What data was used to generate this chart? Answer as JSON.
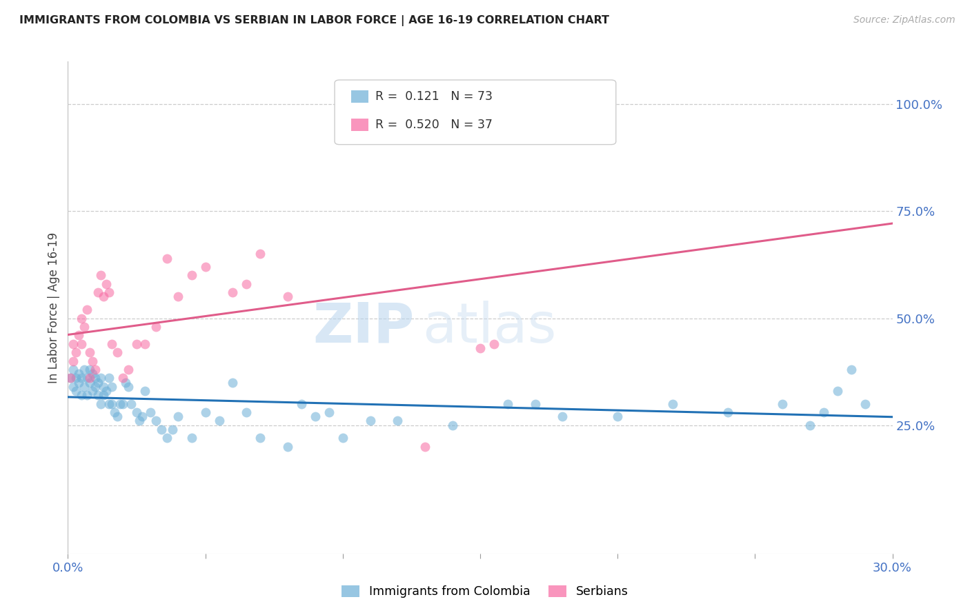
{
  "title": "IMMIGRANTS FROM COLOMBIA VS SERBIAN IN LABOR FORCE | AGE 16-19 CORRELATION CHART",
  "source": "Source: ZipAtlas.com",
  "ylabel": "In Labor Force | Age 16-19",
  "xlim": [
    0.0,
    0.3
  ],
  "ylim": [
    -0.05,
    1.1
  ],
  "xticks": [
    0.0,
    0.05,
    0.1,
    0.15,
    0.2,
    0.25,
    0.3
  ],
  "xticklabels": [
    "0.0%",
    "",
    "",
    "",
    "",
    "",
    "30.0%"
  ],
  "ytick_positions": [
    0.25,
    0.5,
    0.75,
    1.0
  ],
  "ytick_labels": [
    "25.0%",
    "50.0%",
    "75.0%",
    "100.0%"
  ],
  "colombia_color": "#6baed6",
  "serbian_color": "#f768a1",
  "colombia_line_color": "#2171b5",
  "serbian_line_color": "#e05c8a",
  "colombia_R": 0.121,
  "colombia_N": 73,
  "serbian_R": 0.52,
  "serbian_N": 37,
  "watermark_zip": "ZIP",
  "watermark_atlas": "atlas",
  "colombia_x": [
    0.001,
    0.002,
    0.002,
    0.003,
    0.003,
    0.004,
    0.004,
    0.005,
    0.005,
    0.006,
    0.006,
    0.007,
    0.007,
    0.008,
    0.008,
    0.009,
    0.009,
    0.01,
    0.01,
    0.011,
    0.011,
    0.012,
    0.012,
    0.013,
    0.013,
    0.014,
    0.015,
    0.015,
    0.016,
    0.016,
    0.017,
    0.018,
    0.019,
    0.02,
    0.021,
    0.022,
    0.023,
    0.025,
    0.026,
    0.027,
    0.028,
    0.03,
    0.032,
    0.034,
    0.036,
    0.038,
    0.04,
    0.045,
    0.05,
    0.055,
    0.06,
    0.065,
    0.07,
    0.08,
    0.085,
    0.09,
    0.095,
    0.1,
    0.11,
    0.12,
    0.14,
    0.16,
    0.17,
    0.18,
    0.2,
    0.22,
    0.24,
    0.26,
    0.27,
    0.275,
    0.28,
    0.285,
    0.29
  ],
  "colombia_y": [
    0.36,
    0.34,
    0.38,
    0.36,
    0.33,
    0.35,
    0.37,
    0.36,
    0.32,
    0.34,
    0.38,
    0.36,
    0.32,
    0.35,
    0.38,
    0.33,
    0.37,
    0.36,
    0.34,
    0.35,
    0.32,
    0.36,
    0.3,
    0.34,
    0.32,
    0.33,
    0.3,
    0.36,
    0.3,
    0.34,
    0.28,
    0.27,
    0.3,
    0.3,
    0.35,
    0.34,
    0.3,
    0.28,
    0.26,
    0.27,
    0.33,
    0.28,
    0.26,
    0.24,
    0.22,
    0.24,
    0.27,
    0.22,
    0.28,
    0.26,
    0.35,
    0.28,
    0.22,
    0.2,
    0.3,
    0.27,
    0.28,
    0.22,
    0.26,
    0.26,
    0.25,
    0.3,
    0.3,
    0.27,
    0.27,
    0.3,
    0.28,
    0.3,
    0.25,
    0.28,
    0.33,
    0.38,
    0.3
  ],
  "serbian_x": [
    0.001,
    0.002,
    0.002,
    0.003,
    0.004,
    0.005,
    0.005,
    0.006,
    0.007,
    0.008,
    0.008,
    0.009,
    0.01,
    0.011,
    0.012,
    0.013,
    0.014,
    0.015,
    0.016,
    0.018,
    0.02,
    0.022,
    0.025,
    0.028,
    0.032,
    0.036,
    0.04,
    0.045,
    0.05,
    0.06,
    0.065,
    0.07,
    0.08,
    0.13,
    0.15,
    0.155,
    0.16
  ],
  "serbian_y": [
    0.36,
    0.4,
    0.44,
    0.42,
    0.46,
    0.44,
    0.5,
    0.48,
    0.52,
    0.36,
    0.42,
    0.4,
    0.38,
    0.56,
    0.6,
    0.55,
    0.58,
    0.56,
    0.44,
    0.42,
    0.36,
    0.38,
    0.44,
    0.44,
    0.48,
    0.64,
    0.55,
    0.6,
    0.62,
    0.56,
    0.58,
    0.65,
    0.55,
    0.2,
    0.43,
    0.44,
    1.02
  ],
  "grid_color": "#cccccc",
  "background_color": "#ffffff"
}
